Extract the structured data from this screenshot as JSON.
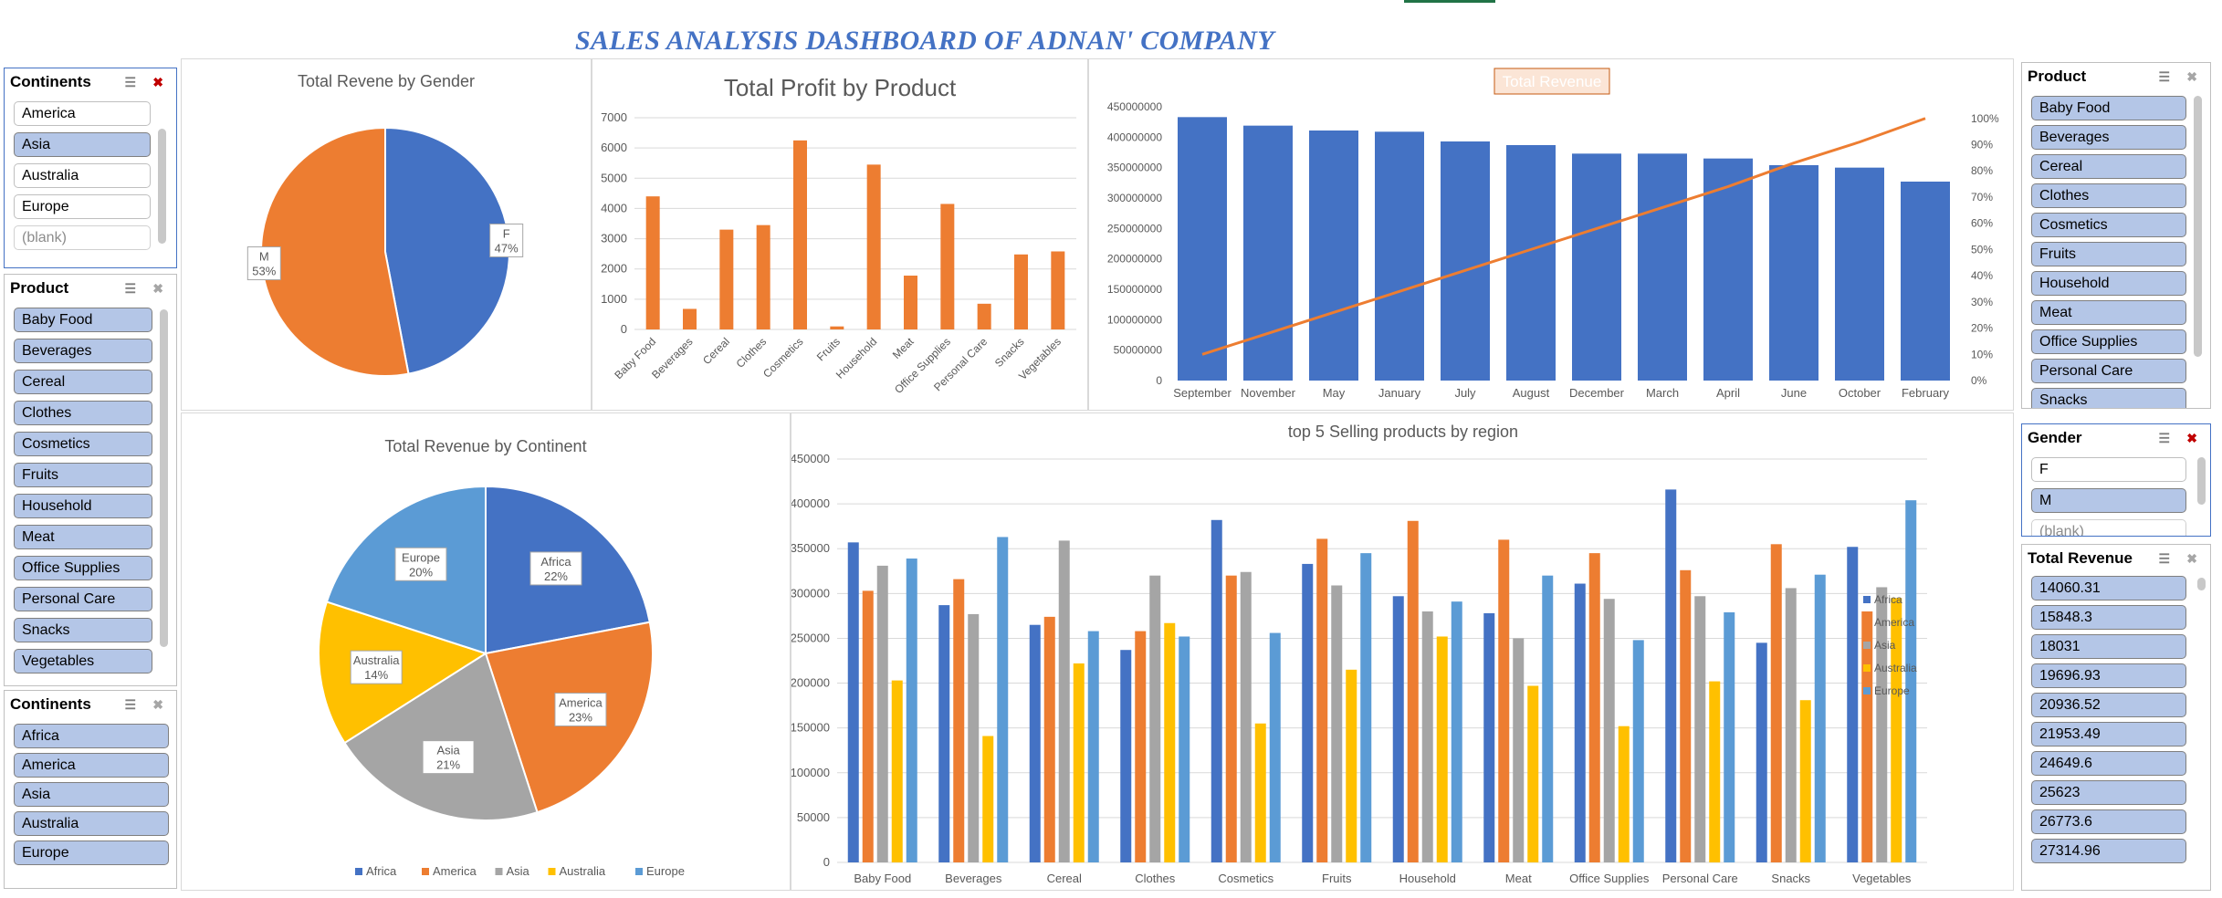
{
  "dashboard_title": "SALES ANALYSIS DASHBOARD OF ADNAN' COMPANY",
  "slicers": {
    "continents_top": {
      "title": "Continents",
      "items": [
        {
          "label": "America",
          "selected": false
        },
        {
          "label": "Asia",
          "selected": true
        },
        {
          "label": "Australia",
          "selected": false
        },
        {
          "label": "Europe",
          "selected": false
        },
        {
          "label": "(blank)",
          "selected": false,
          "blank": true
        }
      ]
    },
    "product_left": {
      "title": "Product",
      "items": [
        {
          "label": "Baby Food",
          "selected": true
        },
        {
          "label": "Beverages",
          "selected": true
        },
        {
          "label": "Cereal",
          "selected": true
        },
        {
          "label": "Clothes",
          "selected": true
        },
        {
          "label": "Cosmetics",
          "selected": true
        },
        {
          "label": "Fruits",
          "selected": true
        },
        {
          "label": "Household",
          "selected": true
        },
        {
          "label": "Meat",
          "selected": true
        },
        {
          "label": "Office Supplies",
          "selected": true
        },
        {
          "label": "Personal Care",
          "selected": true
        },
        {
          "label": "Snacks",
          "selected": true
        },
        {
          "label": "Vegetables",
          "selected": true
        }
      ]
    },
    "continents_bottom": {
      "title": "Continents",
      "items": [
        {
          "label": "Africa",
          "selected": true
        },
        {
          "label": "America",
          "selected": true
        },
        {
          "label": "Asia",
          "selected": true
        },
        {
          "label": "Australia",
          "selected": true
        },
        {
          "label": "Europe",
          "selected": true
        }
      ]
    },
    "product_right": {
      "title": "Product",
      "items": [
        {
          "label": "Baby Food",
          "selected": true
        },
        {
          "label": "Beverages",
          "selected": true
        },
        {
          "label": "Cereal",
          "selected": true
        },
        {
          "label": "Clothes",
          "selected": true
        },
        {
          "label": "Cosmetics",
          "selected": true
        },
        {
          "label": "Fruits",
          "selected": true
        },
        {
          "label": "Household",
          "selected": true
        },
        {
          "label": "Meat",
          "selected": true
        },
        {
          "label": "Office Supplies",
          "selected": true
        },
        {
          "label": "Personal Care",
          "selected": true
        },
        {
          "label": "Snacks",
          "selected": true
        }
      ]
    },
    "gender": {
      "title": "Gender",
      "items": [
        {
          "label": "F",
          "selected": false
        },
        {
          "label": "M",
          "selected": true
        },
        {
          "label": "(blank)",
          "selected": false,
          "blank": true
        }
      ]
    },
    "total_revenue": {
      "title": "Total Revenue",
      "items": [
        {
          "label": "14060.31",
          "selected": true
        },
        {
          "label": "15848.3",
          "selected": true
        },
        {
          "label": "18031",
          "selected": true
        },
        {
          "label": "19696.93",
          "selected": true
        },
        {
          "label": "20936.52",
          "selected": true
        },
        {
          "label": "21953.49",
          "selected": true
        },
        {
          "label": "24649.6",
          "selected": true
        },
        {
          "label": "25623",
          "selected": true
        },
        {
          "label": "26773.6",
          "selected": true
        },
        {
          "label": "27314.96",
          "selected": true
        }
      ]
    }
  },
  "colors": {
    "blue": "#4472c4",
    "orange": "#ed7d31",
    "gray": "#a5a5a5",
    "gold": "#ffc000",
    "lightblue": "#5b9bd5",
    "axis_text": "#595959",
    "grid": "#d9d9d9"
  },
  "chart_data": [
    {
      "id": "gender_pie",
      "type": "pie",
      "title": "Total Revene by Gender",
      "slices": [
        {
          "label": "F",
          "value": 47,
          "pct_label": "47%",
          "color": "#4472c4"
        },
        {
          "label": "M",
          "value": 53,
          "pct_label": "53%",
          "color": "#ed7d31"
        }
      ]
    },
    {
      "id": "profit_bar",
      "type": "bar",
      "title": "Total Profit by Product",
      "categories": [
        "Baby Food",
        "Beverages",
        "Cereal",
        "Clothes",
        "Cosmetics",
        "Fruits",
        "Household",
        "Meat",
        "Office Supplies",
        "Personal Care",
        "Snacks",
        "Vegetables"
      ],
      "values": [
        4400,
        680,
        3300,
        3450,
        6250,
        100,
        5450,
        1780,
        4150,
        850,
        2480,
        2580
      ],
      "ylim": [
        0,
        7000
      ],
      "yticks": [
        0,
        1000,
        2000,
        3000,
        4000,
        5000,
        6000,
        7000
      ],
      "color": "#ed7d31",
      "grid": true
    },
    {
      "id": "revenue_pareto",
      "type": "bar",
      "title": "Total Revenue",
      "categories": [
        "September",
        "November",
        "May",
        "January",
        "July",
        "August",
        "December",
        "March",
        "April",
        "June",
        "October",
        "February"
      ],
      "values": [
        433000000,
        419000000,
        411000000,
        409000000,
        393000000,
        387000000,
        373000000,
        373000000,
        365000000,
        354000000,
        350000000,
        327000000
      ],
      "ylim": [
        0,
        450000000
      ],
      "yticks": [
        0,
        50000000,
        100000000,
        150000000,
        200000000,
        250000000,
        300000000,
        350000000,
        400000000,
        450000000
      ],
      "line": {
        "values": [
          10,
          18,
          26,
          34,
          42,
          50,
          58,
          66,
          74,
          83,
          91,
          100
        ],
        "ylim": [
          0,
          100
        ],
        "yticks": [
          "0%",
          "10%",
          "20%",
          "30%",
          "40%",
          "50%",
          "60%",
          "70%",
          "80%",
          "90%",
          "100%"
        ],
        "color": "#ed7d31"
      },
      "color": "#4472c4",
      "grid": false
    },
    {
      "id": "continent_pie",
      "type": "pie",
      "title": "Total Revenue by Continent",
      "slices": [
        {
          "label": "Africa",
          "value": 22,
          "pct_label": "22%",
          "color": "#4472c4"
        },
        {
          "label": "America",
          "value": 23,
          "pct_label": "23%",
          "color": "#ed7d31"
        },
        {
          "label": "Asia",
          "value": 21,
          "pct_label": "21%",
          "color": "#a5a5a5"
        },
        {
          "label": "Australia",
          "value": 14,
          "pct_label": "14%",
          "color": "#ffc000"
        },
        {
          "label": "Europe",
          "value": 20,
          "pct_label": "20%",
          "color": "#5b9bd5"
        }
      ],
      "legend": [
        "Africa",
        "America",
        "Asia",
        "Australia",
        "Europe"
      ],
      "legend_position": "bottom"
    },
    {
      "id": "region_bar",
      "type": "bar",
      "title": "top 5 Selling products by region",
      "categories": [
        "Baby Food",
        "Beverages",
        "Cereal",
        "Clothes",
        "Cosmetics",
        "Fruits",
        "Household",
        "Meat",
        "Office Supplies",
        "Personal Care",
        "Snacks",
        "Vegetables"
      ],
      "series": [
        {
          "name": "Africa",
          "color": "#4472c4",
          "values": [
            357000,
            287000,
            265000,
            237000,
            382000,
            333000,
            297000,
            278000,
            311000,
            416000,
            245000,
            352000
          ]
        },
        {
          "name": "America",
          "color": "#ed7d31",
          "values": [
            303000,
            316000,
            274000,
            258000,
            320000,
            361000,
            381000,
            360000,
            345000,
            326000,
            355000,
            280000
          ]
        },
        {
          "name": "Asia",
          "color": "#a5a5a5",
          "values": [
            331000,
            277000,
            359000,
            320000,
            324000,
            309000,
            280000,
            250000,
            294000,
            297000,
            306000,
            307000
          ]
        },
        {
          "name": "Australia",
          "color": "#ffc000",
          "values": [
            203000,
            141000,
            222000,
            267000,
            155000,
            215000,
            252000,
            197000,
            152000,
            202000,
            181000,
            295000
          ]
        },
        {
          "name": "Europe",
          "color": "#5b9bd5",
          "values": [
            339000,
            363000,
            258000,
            252000,
            256000,
            345000,
            291000,
            320000,
            248000,
            279000,
            321000,
            404000
          ]
        }
      ],
      "ylim": [
        0,
        450000
      ],
      "yticks": [
        0,
        50000,
        100000,
        150000,
        200000,
        250000,
        300000,
        350000,
        400000,
        450000
      ],
      "legend_position": "right",
      "grid": true
    }
  ]
}
